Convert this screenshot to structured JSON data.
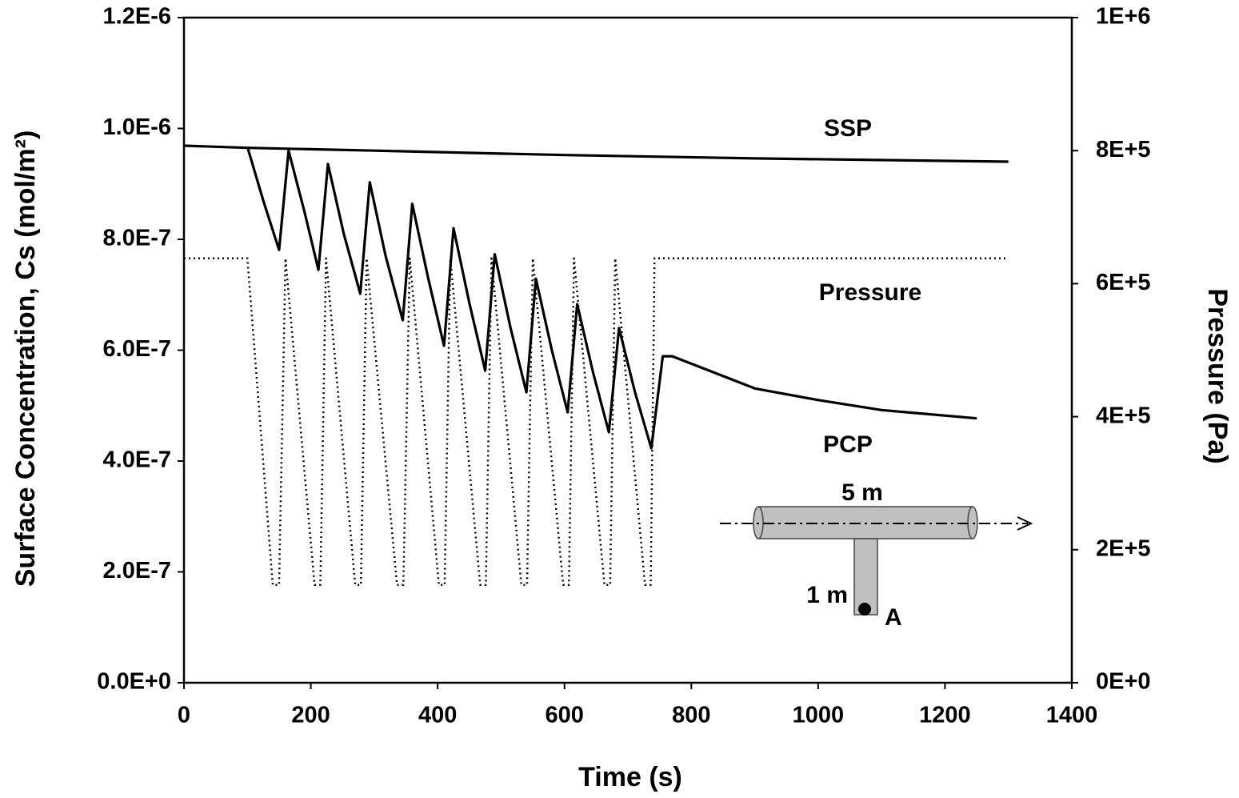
{
  "chart_data": {
    "type": "line",
    "xlabel": "Time (s)",
    "ylabel": "Surface Concentration, Cs (mol/m²)",
    "y2label": "Pressure (Pa)",
    "xlim": [
      0,
      1400
    ],
    "xticks": [
      0,
      200,
      400,
      600,
      800,
      1000,
      1200,
      1400
    ],
    "ylim": [
      0,
      1.2e-06
    ],
    "yticks": [
      {
        "value": 0,
        "label": "0.0E+0"
      },
      {
        "value": 2e-07,
        "label": "2.0E-7"
      },
      {
        "value": 4e-07,
        "label": "4.0E-7"
      },
      {
        "value": 6e-07,
        "label": "6.0E-7"
      },
      {
        "value": 8e-07,
        "label": "8.0E-7"
      },
      {
        "value": 1e-06,
        "label": "1.0E-6"
      },
      {
        "value": 1.2e-06,
        "label": "1.2E-6"
      }
    ],
    "y2lim": [
      0,
      1000000
    ],
    "y2ticks": [
      {
        "value": 0,
        "label": "0E+0"
      },
      {
        "value": 200000,
        "label": "2E+5"
      },
      {
        "value": 400000,
        "label": "4E+5"
      },
      {
        "value": 600000,
        "label": "6E+5"
      },
      {
        "value": 800000,
        "label": "8E+5"
      },
      {
        "value": 1000000,
        "label": "1E+6"
      }
    ],
    "series": [
      {
        "name": "SSP",
        "color": "#000000",
        "dash": "solid",
        "x": [
          0,
          100,
          300,
          600,
          900,
          1300
        ],
        "values": [
          9.69e-07,
          9.65e-07,
          9.6e-07,
          9.52e-07,
          9.46e-07,
          9.4e-07
        ]
      },
      {
        "name": "PCP",
        "color": "#000000",
        "dash": "solid",
        "x": [
          100,
          125,
          150,
          165,
          190,
          212,
          227,
          252,
          278,
          293,
          318,
          345,
          360,
          385,
          410,
          425,
          450,
          475,
          490,
          515,
          540,
          555,
          580,
          605,
          620,
          645,
          670,
          686,
          711,
          737,
          755,
          770,
          900,
          1000,
          1100,
          1250
        ],
        "values": [
          9.67e-07,
          8.7e-07,
          7.81e-07,
          9.6e-07,
          8.5e-07,
          7.45e-07,
          9.36e-07,
          8.1e-07,
          7.02e-07,
          9.03e-07,
          7.7e-07,
          6.54e-07,
          8.64e-07,
          7.3e-07,
          6.08e-07,
          8.2e-07,
          6.85e-07,
          5.63e-07,
          7.73e-07,
          6.4e-07,
          5.24e-07,
          7.29e-07,
          6e-07,
          4.88e-07,
          6.83e-07,
          5.6e-07,
          4.52e-07,
          6.4e-07,
          5.25e-07,
          4.23e-07,
          5.89e-07,
          5.89e-07,
          5.31e-07,
          5.1e-07,
          4.92e-07,
          4.77e-07
        ]
      },
      {
        "name": "Pressure",
        "color": "#000000",
        "dash": "dotted",
        "axis": "y2",
        "x": [
          0,
          100,
          140,
          150,
          160,
          206,
          215,
          224,
          270,
          279,
          288,
          336,
          346,
          356,
          402,
          411,
          420,
          467,
          476,
          485,
          532,
          541,
          550,
          598,
          607,
          615,
          663,
          672,
          680,
          727,
          736,
          742,
          1300
        ],
        "values": [
          638000,
          638000,
          147000,
          147000,
          638000,
          147000,
          147000,
          638000,
          147000,
          147000,
          638000,
          147000,
          147000,
          638000,
          147000,
          147000,
          638000,
          147000,
          147000,
          638000,
          147000,
          147000,
          638000,
          147000,
          147000,
          638000,
          147000,
          147000,
          638000,
          147000,
          147000,
          638000,
          638000
        ]
      }
    ],
    "annotations": [
      "SSP",
      "Pressure",
      "PCP",
      "5 m",
      "1 m",
      "A"
    ]
  }
}
